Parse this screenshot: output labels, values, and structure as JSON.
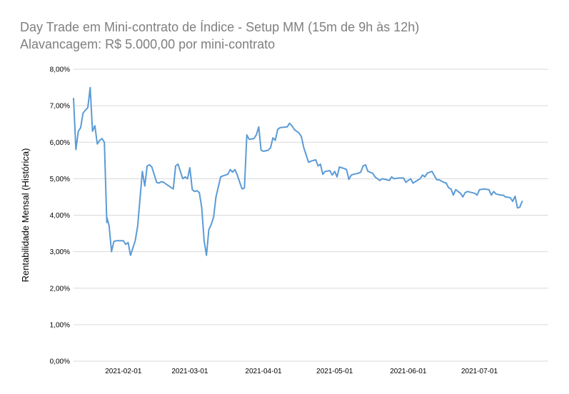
{
  "chart_data": {
    "type": "line",
    "title": "Day Trade em Mini-contrato de Índice - Setup MM (15m de 9h às 12h)",
    "subtitle": "Alavancagem: R$ 5.000,00 por mini-contrato",
    "xlabel": "",
    "ylabel": "Rentabilidade Mensal (Histórica)",
    "ylim": [
      0,
      8
    ],
    "y_ticks": [
      "0,00%",
      "1,00%",
      "2,00%",
      "3,00%",
      "4,00%",
      "5,00%",
      "6,00%",
      "7,00%",
      "8,00%"
    ],
    "x_ticks": [
      "2021-02-01",
      "2021-03-01",
      "2021-04-01",
      "2021-05-01",
      "2021-06-01",
      "2021-07-01"
    ],
    "x_tick_dates": [
      "2021-02-01",
      "2021-03-01",
      "2021-04-01",
      "2021-05-01",
      "2021-06-01",
      "2021-07-01"
    ],
    "xlim": [
      "2021-01-11",
      "2021-07-30"
    ],
    "grid": "horizontal",
    "line_color": "#5b9bd5",
    "series": [
      {
        "name": "",
        "points": [
          [
            "2021-01-11",
            7.2
          ],
          [
            "2021-01-12",
            5.8
          ],
          [
            "2021-01-13",
            6.3
          ],
          [
            "2021-01-14",
            6.4
          ],
          [
            "2021-01-15",
            6.8
          ],
          [
            "2021-01-17",
            6.95
          ],
          [
            "2021-01-18",
            7.5
          ],
          [
            "2021-01-19",
            6.3
          ],
          [
            "2021-01-20",
            6.45
          ],
          [
            "2021-01-21",
            5.95
          ],
          [
            "2021-01-22",
            6.05
          ],
          [
            "2021-01-23",
            6.1
          ],
          [
            "2021-01-24",
            6.0
          ],
          [
            "2021-01-25",
            3.8
          ],
          [
            "2021-01-25",
            3.95
          ],
          [
            "2021-01-26",
            3.7
          ],
          [
            "2021-01-27",
            3.0
          ],
          [
            "2021-01-28",
            3.28
          ],
          [
            "2021-01-29",
            3.3
          ],
          [
            "2021-02-01",
            3.3
          ],
          [
            "2021-02-02",
            3.2
          ],
          [
            "2021-02-03",
            3.25
          ],
          [
            "2021-02-04",
            2.9
          ],
          [
            "2021-02-06",
            3.3
          ],
          [
            "2021-02-07",
            3.7
          ],
          [
            "2021-02-09",
            5.2
          ],
          [
            "2021-02-10",
            4.8
          ],
          [
            "2021-02-11",
            5.35
          ],
          [
            "2021-02-12",
            5.38
          ],
          [
            "2021-02-13",
            5.32
          ],
          [
            "2021-02-15",
            4.9
          ],
          [
            "2021-02-16",
            4.88
          ],
          [
            "2021-02-17",
            4.92
          ],
          [
            "2021-02-18",
            4.9
          ],
          [
            "2021-02-19",
            4.85
          ],
          [
            "2021-02-22",
            4.72
          ],
          [
            "2021-02-23",
            5.35
          ],
          [
            "2021-02-24",
            5.4
          ],
          [
            "2021-02-25",
            5.2
          ],
          [
            "2021-02-26",
            5.0
          ],
          [
            "2021-02-27",
            5.05
          ],
          [
            "2021-02-28",
            5.0
          ],
          [
            "2021-03-01",
            5.3
          ],
          [
            "2021-03-02",
            4.7
          ],
          [
            "2021-03-03",
            4.65
          ],
          [
            "2021-03-04",
            4.67
          ],
          [
            "2021-03-05",
            4.62
          ],
          [
            "2021-03-06",
            4.2
          ],
          [
            "2021-03-07",
            3.3
          ],
          [
            "2021-03-08",
            2.9
          ],
          [
            "2021-03-09",
            3.6
          ],
          [
            "2021-03-10",
            3.75
          ],
          [
            "2021-03-11",
            3.95
          ],
          [
            "2021-03-12",
            4.5
          ],
          [
            "2021-03-14",
            5.05
          ],
          [
            "2021-03-15",
            5.08
          ],
          [
            "2021-03-17",
            5.12
          ],
          [
            "2021-03-18",
            5.25
          ],
          [
            "2021-03-19",
            5.18
          ],
          [
            "2021-03-20",
            5.25
          ],
          [
            "2021-03-21",
            5.1
          ],
          [
            "2021-03-22",
            4.9
          ],
          [
            "2021-03-23",
            4.72
          ],
          [
            "2021-03-24",
            4.75
          ],
          [
            "2021-03-25",
            6.2
          ],
          [
            "2021-03-26",
            6.08
          ],
          [
            "2021-03-28",
            6.1
          ],
          [
            "2021-03-29",
            6.2
          ],
          [
            "2021-03-30",
            6.42
          ],
          [
            "2021-03-31",
            5.78
          ],
          [
            "2021-04-01",
            5.75
          ],
          [
            "2021-04-03",
            5.78
          ],
          [
            "2021-04-04",
            5.85
          ],
          [
            "2021-04-05",
            6.12
          ],
          [
            "2021-04-06",
            6.05
          ],
          [
            "2021-04-07",
            6.35
          ],
          [
            "2021-04-08",
            6.4
          ],
          [
            "2021-04-11",
            6.42
          ],
          [
            "2021-04-12",
            6.52
          ],
          [
            "2021-04-13",
            6.45
          ],
          [
            "2021-04-14",
            6.35
          ],
          [
            "2021-04-16",
            6.25
          ],
          [
            "2021-04-17",
            6.15
          ],
          [
            "2021-04-18",
            5.85
          ],
          [
            "2021-04-20",
            5.45
          ],
          [
            "2021-04-21",
            5.48
          ],
          [
            "2021-04-22",
            5.5
          ],
          [
            "2021-04-23",
            5.52
          ],
          [
            "2021-04-24",
            5.35
          ],
          [
            "2021-04-25",
            5.4
          ],
          [
            "2021-04-26",
            5.12
          ],
          [
            "2021-04-27",
            5.2
          ],
          [
            "2021-04-29",
            5.22
          ],
          [
            "2021-04-30",
            5.1
          ],
          [
            "2021-05-01",
            5.2
          ],
          [
            "2021-05-02",
            5.05
          ],
          [
            "2021-05-03",
            5.32
          ],
          [
            "2021-05-05",
            5.28
          ],
          [
            "2021-05-06",
            5.25
          ],
          [
            "2021-05-07",
            4.98
          ],
          [
            "2021-05-08",
            5.1
          ],
          [
            "2021-05-09",
            5.12
          ],
          [
            "2021-05-11",
            5.15
          ],
          [
            "2021-05-12",
            5.18
          ],
          [
            "2021-05-13",
            5.35
          ],
          [
            "2021-05-14",
            5.38
          ],
          [
            "2021-05-15",
            5.2
          ],
          [
            "2021-05-17",
            5.15
          ],
          [
            "2021-05-18",
            5.05
          ],
          [
            "2021-05-19",
            5.0
          ],
          [
            "2021-05-20",
            4.95
          ],
          [
            "2021-05-21",
            5.0
          ],
          [
            "2021-05-23",
            4.97
          ],
          [
            "2021-05-24",
            4.95
          ],
          [
            "2021-05-25",
            5.05
          ],
          [
            "2021-05-26",
            5.0
          ],
          [
            "2021-05-28",
            5.02
          ],
          [
            "2021-05-30",
            5.02
          ],
          [
            "2021-05-31",
            4.9
          ],
          [
            "2021-06-01",
            4.95
          ],
          [
            "2021-06-02",
            5.0
          ],
          [
            "2021-06-03",
            4.88
          ],
          [
            "2021-06-06",
            5.0
          ],
          [
            "2021-06-07",
            5.1
          ],
          [
            "2021-06-08",
            5.05
          ],
          [
            "2021-06-09",
            5.15
          ],
          [
            "2021-06-11",
            5.2
          ],
          [
            "2021-06-13",
            4.97
          ],
          [
            "2021-06-14",
            4.97
          ],
          [
            "2021-06-16",
            4.9
          ],
          [
            "2021-06-17",
            4.88
          ],
          [
            "2021-06-18",
            4.75
          ],
          [
            "2021-06-19",
            4.72
          ],
          [
            "2021-06-20",
            4.55
          ],
          [
            "2021-06-21",
            4.7
          ],
          [
            "2021-06-23",
            4.6
          ],
          [
            "2021-06-24",
            4.5
          ],
          [
            "2021-06-25",
            4.62
          ],
          [
            "2021-06-26",
            4.65
          ],
          [
            "2021-06-29",
            4.6
          ],
          [
            "2021-06-30",
            4.55
          ],
          [
            "2021-07-01",
            4.7
          ],
          [
            "2021-07-03",
            4.72
          ],
          [
            "2021-07-05",
            4.7
          ],
          [
            "2021-07-06",
            4.55
          ],
          [
            "2021-07-07",
            4.65
          ],
          [
            "2021-07-08",
            4.58
          ],
          [
            "2021-07-10",
            4.55
          ],
          [
            "2021-07-11",
            4.55
          ],
          [
            "2021-07-12",
            4.5
          ],
          [
            "2021-07-14",
            4.48
          ],
          [
            "2021-07-15",
            4.38
          ],
          [
            "2021-07-16",
            4.52
          ],
          [
            "2021-07-17",
            4.2
          ],
          [
            "2021-07-18",
            4.22
          ],
          [
            "2021-07-19",
            4.38
          ]
        ]
      }
    ]
  }
}
